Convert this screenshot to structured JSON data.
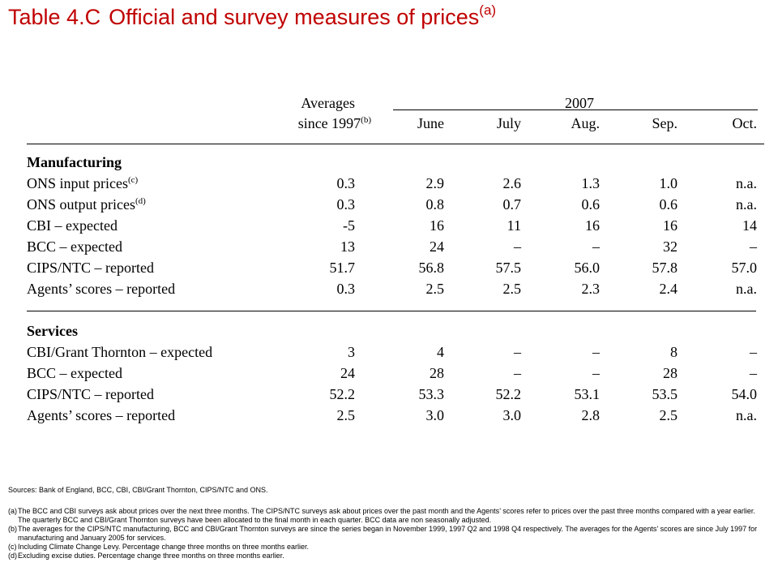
{
  "title": {
    "number": "Table 4.C",
    "text": "Official and survey measures of prices",
    "note_mark": "(a)"
  },
  "header": {
    "averages_line1": "Averages",
    "averages_line2": "since 1997",
    "averages_note": "(b)",
    "year": "2007",
    "months": [
      "June",
      "July",
      "Aug.",
      "Sep.",
      "Oct."
    ]
  },
  "sections": [
    {
      "title": "Manufacturing",
      "rows": [
        {
          "label": "ONS input prices",
          "note": "(c)",
          "values": [
            "0.3",
            "2.9",
            "2.6",
            "1.3",
            "1.0",
            "n.a."
          ]
        },
        {
          "label": "ONS output prices",
          "note": "(d)",
          "values": [
            "0.3",
            "0.8",
            "0.7",
            "0.6",
            "0.6",
            "n.a."
          ]
        },
        {
          "label": "CBI – expected",
          "note": "",
          "values": [
            "-5",
            "16",
            "11",
            "16",
            "16",
            "14"
          ]
        },
        {
          "label": "BCC – expected",
          "note": "",
          "values": [
            "13",
            "24",
            "–",
            "–",
            "32",
            "–"
          ]
        },
        {
          "label": "CIPS/NTC – reported",
          "note": "",
          "values": [
            "51.7",
            "56.8",
            "57.5",
            "56.0",
            "57.8",
            "57.0"
          ]
        },
        {
          "label": "Agents’ scores – reported",
          "note": "",
          "values": [
            "0.3",
            "2.5",
            "2.5",
            "2.3",
            "2.4",
            "n.a."
          ]
        }
      ]
    },
    {
      "title": "Services",
      "rows": [
        {
          "label": "CBI/Grant Thornton – expected",
          "note": "",
          "values": [
            "3",
            "4",
            "–",
            "–",
            "8",
            "–"
          ]
        },
        {
          "label": "BCC – expected",
          "note": "",
          "values": [
            "24",
            "28",
            "–",
            "–",
            "28",
            "–"
          ]
        },
        {
          "label": "CIPS/NTC – reported",
          "note": "",
          "values": [
            "52.2",
            "53.3",
            "52.2",
            "53.1",
            "53.5",
            "54.0"
          ]
        },
        {
          "label": "Agents’ scores – reported",
          "note": "",
          "values": [
            "2.5",
            "3.0",
            "3.0",
            "2.8",
            "2.5",
            "n.a."
          ]
        }
      ]
    }
  ],
  "footnotes": {
    "sources": "Sources: Bank of England, BCC, CBI, CBI/Grant Thornton, CIPS/NTC and ONS.",
    "items": [
      {
        "mark": "(a)",
        "text": "The BCC and CBI surveys ask about prices over the next three months. The CIPS/NTC surveys ask about prices over the past month and the Agents’ scores refer to prices over the past three months compared with a year earlier. The quarterly BCC and CBI/Grant Thornton surveys have been allocated to the final month in each quarter. BCC data are non seasonally adjusted."
      },
      {
        "mark": "(b)",
        "text": "The averages for the CIPS/NTC manufacturing, BCC and CBI/Grant Thornton surveys are since the series began in November 1999, 1997 Q2 and 1998 Q4 respectively. The averages for the Agents’ scores are since July 1997 for manufacturing and January 2005 for services."
      },
      {
        "mark": "(c)",
        "text": "Including Climate Change Levy. Percentage change three months on three months earlier."
      },
      {
        "mark": "(d)",
        "text": "Excluding excise duties. Percentage change three months on three months earlier."
      }
    ]
  }
}
